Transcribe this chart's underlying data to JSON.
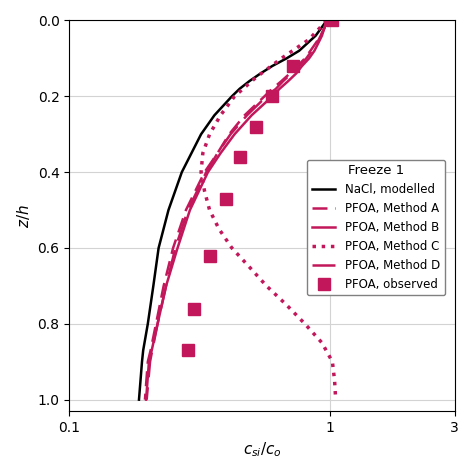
{
  "title": "Freeze 1",
  "xlabel": "$c_{si}/c_o$",
  "ylabel": "$z/h$",
  "xlim_log": [
    0.1,
    3
  ],
  "ylim": [
    0.0,
    1.03
  ],
  "nacl_color": "#000000",
  "pfoa_color": "#c2185b",
  "legend_title": "Freeze 1",
  "nacl_modelled": {
    "z": [
      0.0,
      0.04,
      0.08,
      0.1,
      0.12,
      0.14,
      0.16,
      0.18,
      0.2,
      0.25,
      0.3,
      0.4,
      0.5,
      0.6,
      0.7,
      0.8,
      0.87,
      0.9,
      1.0
    ],
    "c": [
      0.97,
      0.88,
      0.76,
      0.68,
      0.6,
      0.54,
      0.49,
      0.45,
      0.42,
      0.36,
      0.32,
      0.27,
      0.24,
      0.22,
      0.21,
      0.2,
      0.192,
      0.19,
      0.185
    ]
  },
  "pfoa_method_a": {
    "z": [
      0.0,
      0.02,
      0.04,
      0.06,
      0.08,
      0.1,
      0.12,
      0.14,
      0.16,
      0.18,
      0.2,
      0.25,
      0.3,
      0.35,
      0.4,
      0.5,
      0.6,
      0.7,
      0.8,
      0.87,
      0.9,
      1.0
    ],
    "c": [
      0.97,
      0.95,
      0.92,
      0.88,
      0.84,
      0.8,
      0.75,
      0.7,
      0.65,
      0.6,
      0.56,
      0.47,
      0.41,
      0.37,
      0.33,
      0.28,
      0.25,
      0.23,
      0.215,
      0.205,
      0.2,
      0.195
    ]
  },
  "pfoa_method_b": {
    "z": [
      0.0,
      0.02,
      0.04,
      0.06,
      0.08,
      0.1,
      0.12,
      0.14,
      0.16,
      0.18,
      0.2,
      0.25,
      0.3,
      0.35,
      0.4,
      0.5,
      0.6,
      0.7,
      0.8,
      0.87,
      0.9,
      1.0
    ],
    "c": [
      0.97,
      0.95,
      0.93,
      0.9,
      0.87,
      0.83,
      0.78,
      0.74,
      0.69,
      0.64,
      0.6,
      0.5,
      0.43,
      0.38,
      0.34,
      0.29,
      0.26,
      0.235,
      0.218,
      0.207,
      0.202,
      0.197
    ]
  },
  "pfoa_method_c": {
    "z": [
      0.0,
      0.05,
      0.1,
      0.15,
      0.2,
      0.25,
      0.3,
      0.35,
      0.4,
      0.45,
      0.5,
      0.55,
      0.6,
      0.65,
      0.7,
      0.75,
      0.8,
      0.85,
      0.9,
      0.95,
      1.0
    ],
    "c": [
      0.97,
      0.83,
      0.65,
      0.52,
      0.43,
      0.38,
      0.345,
      0.325,
      0.32,
      0.33,
      0.345,
      0.375,
      0.42,
      0.49,
      0.57,
      0.68,
      0.8,
      0.93,
      1.02,
      1.04,
      1.05
    ]
  },
  "pfoa_method_d": {
    "z": [
      0.0,
      0.02,
      0.04,
      0.06,
      0.08,
      0.1,
      0.12,
      0.14,
      0.16,
      0.18,
      0.2,
      0.25,
      0.3,
      0.35,
      0.4,
      0.5,
      0.6,
      0.7,
      0.8,
      0.87,
      0.9,
      1.0
    ],
    "c": [
      0.97,
      0.95,
      0.92,
      0.89,
      0.85,
      0.81,
      0.76,
      0.71,
      0.66,
      0.62,
      0.57,
      0.48,
      0.415,
      0.37,
      0.335,
      0.285,
      0.255,
      0.235,
      0.218,
      0.208,
      0.204,
      0.198
    ]
  },
  "pfoa_observed": {
    "z": [
      0.0,
      0.12,
      0.2,
      0.28,
      0.36,
      0.47,
      0.62,
      0.76,
      0.87
    ],
    "c": [
      1.02,
      0.72,
      0.6,
      0.52,
      0.45,
      0.4,
      0.345,
      0.3,
      0.285
    ]
  }
}
